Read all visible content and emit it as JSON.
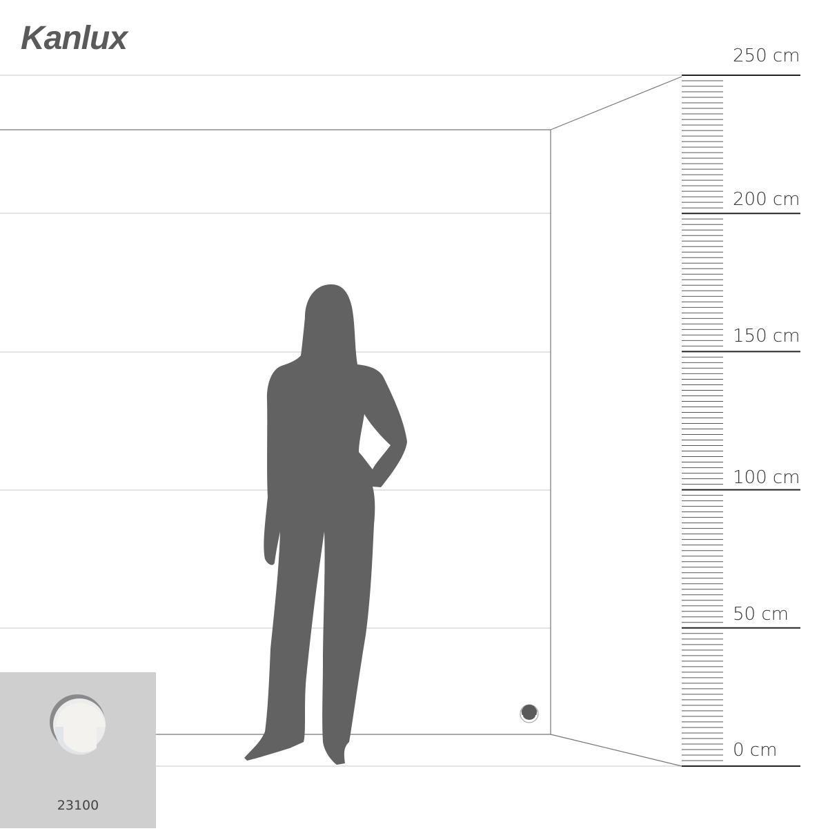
{
  "brand": {
    "logo_text": "Kanlux"
  },
  "scale": {
    "unit": "cm",
    "labels": [
      "250 cm",
      "200 cm",
      "150 cm",
      "100 cm",
      "50 cm",
      "0 cm"
    ],
    "max": 250,
    "minor_tick_step": 2
  },
  "product": {
    "code": "23100"
  },
  "colors": {
    "silhouette": "#626262",
    "inset_bg": "#cfcfcf",
    "lines": "#c8c8c8",
    "ruler": "#222222"
  }
}
